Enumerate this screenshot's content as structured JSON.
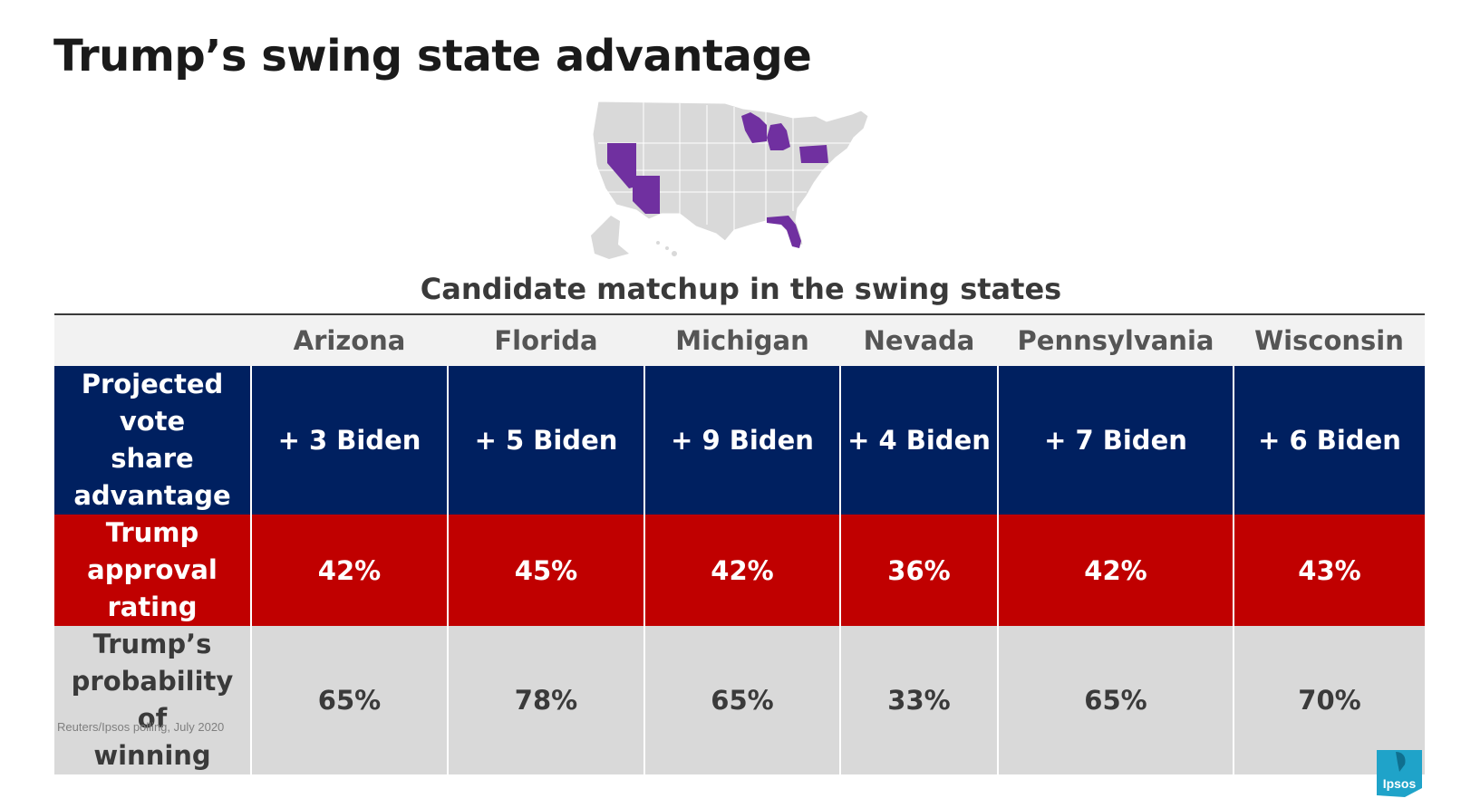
{
  "title": "Trump’s swing state advantage",
  "subtitle": "Candidate matchup in the swing states",
  "source": "Reuters/Ipsos polling, July 2020",
  "logo_text": "Ipsos",
  "colors": {
    "swing_state": "#7030a0",
    "other_state": "#d9d9d9",
    "vote_row": "#002060",
    "approval_row": "#c00000",
    "probability_row": "#d9d9d9",
    "logo": "#1fa3c9"
  },
  "table": {
    "states": [
      "Arizona",
      "Florida",
      "Michigan",
      "Nevada",
      "Pennsylvania",
      "Wisconsin"
    ],
    "rows": [
      {
        "label": [
          "Projected vote",
          "share",
          "advantage"
        ],
        "values": [
          "+ 3 Biden",
          "+ 5 Biden",
          "+ 9 Biden",
          "+ 4 Biden",
          "+ 7 Biden",
          "+ 6 Biden"
        ]
      },
      {
        "label": [
          "Trump",
          "approval rating"
        ],
        "values": [
          "42%",
          "45%",
          "42%",
          "36%",
          "42%",
          "43%"
        ]
      },
      {
        "label": [
          "Trump’s",
          "probability of",
          "winning"
        ],
        "values": [
          "65%",
          "78%",
          "65%",
          "33%",
          "65%",
          "70%"
        ]
      }
    ]
  }
}
